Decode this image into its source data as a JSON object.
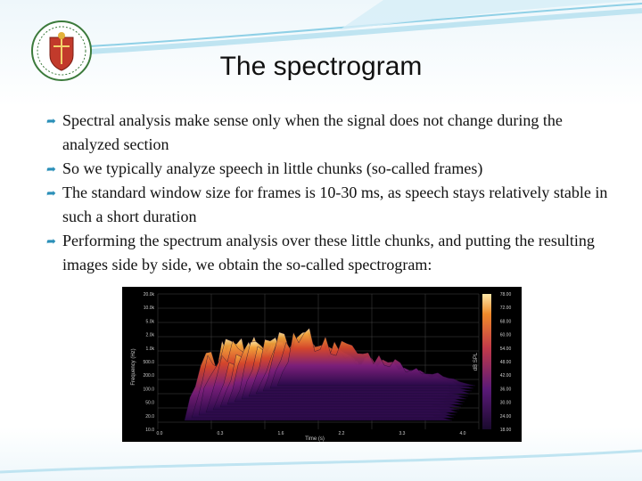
{
  "slide": {
    "title": "The spectrogram",
    "bullet_marker_icon": "curved-arrow-bullet-icon",
    "bullets": [
      "Spectral analysis make sense only when the signal does not change during the analyzed section",
      "So we typically analyze speech in little chunks (so-called frames)",
      "The standard window size for frames is 10-30 ms, as speech stays relatively stable in such a short duration",
      "Performing the spectrum analysis over these little chunks, and putting the resulting images side by side, we obtain the so-called spectrogram:"
    ]
  },
  "theme": {
    "accent": "#2a8fb8",
    "swoosh": "#8fd0e6"
  },
  "figure": {
    "y_axis_label": "Frequency (Hz)",
    "y_ticks": [
      "20.0k",
      "10.0k",
      "5.0k",
      "2.0k",
      "1.0k",
      "500.0",
      "200.0",
      "100.0",
      "50.0",
      "20.0",
      "10.0"
    ],
    "x_axis_label": "Time (s)",
    "x_ticks": [
      "0.0",
      "0.3",
      "1.6",
      "2.2",
      "3.3",
      "4.0"
    ],
    "colorbar_label": "dB SPL",
    "colorbar_ticks": [
      "78.00",
      "72.00",
      "68.00",
      "60.00",
      "54.00",
      "48.00",
      "42.00",
      "36.00",
      "30.00",
      "24.00",
      "18.00"
    ]
  }
}
